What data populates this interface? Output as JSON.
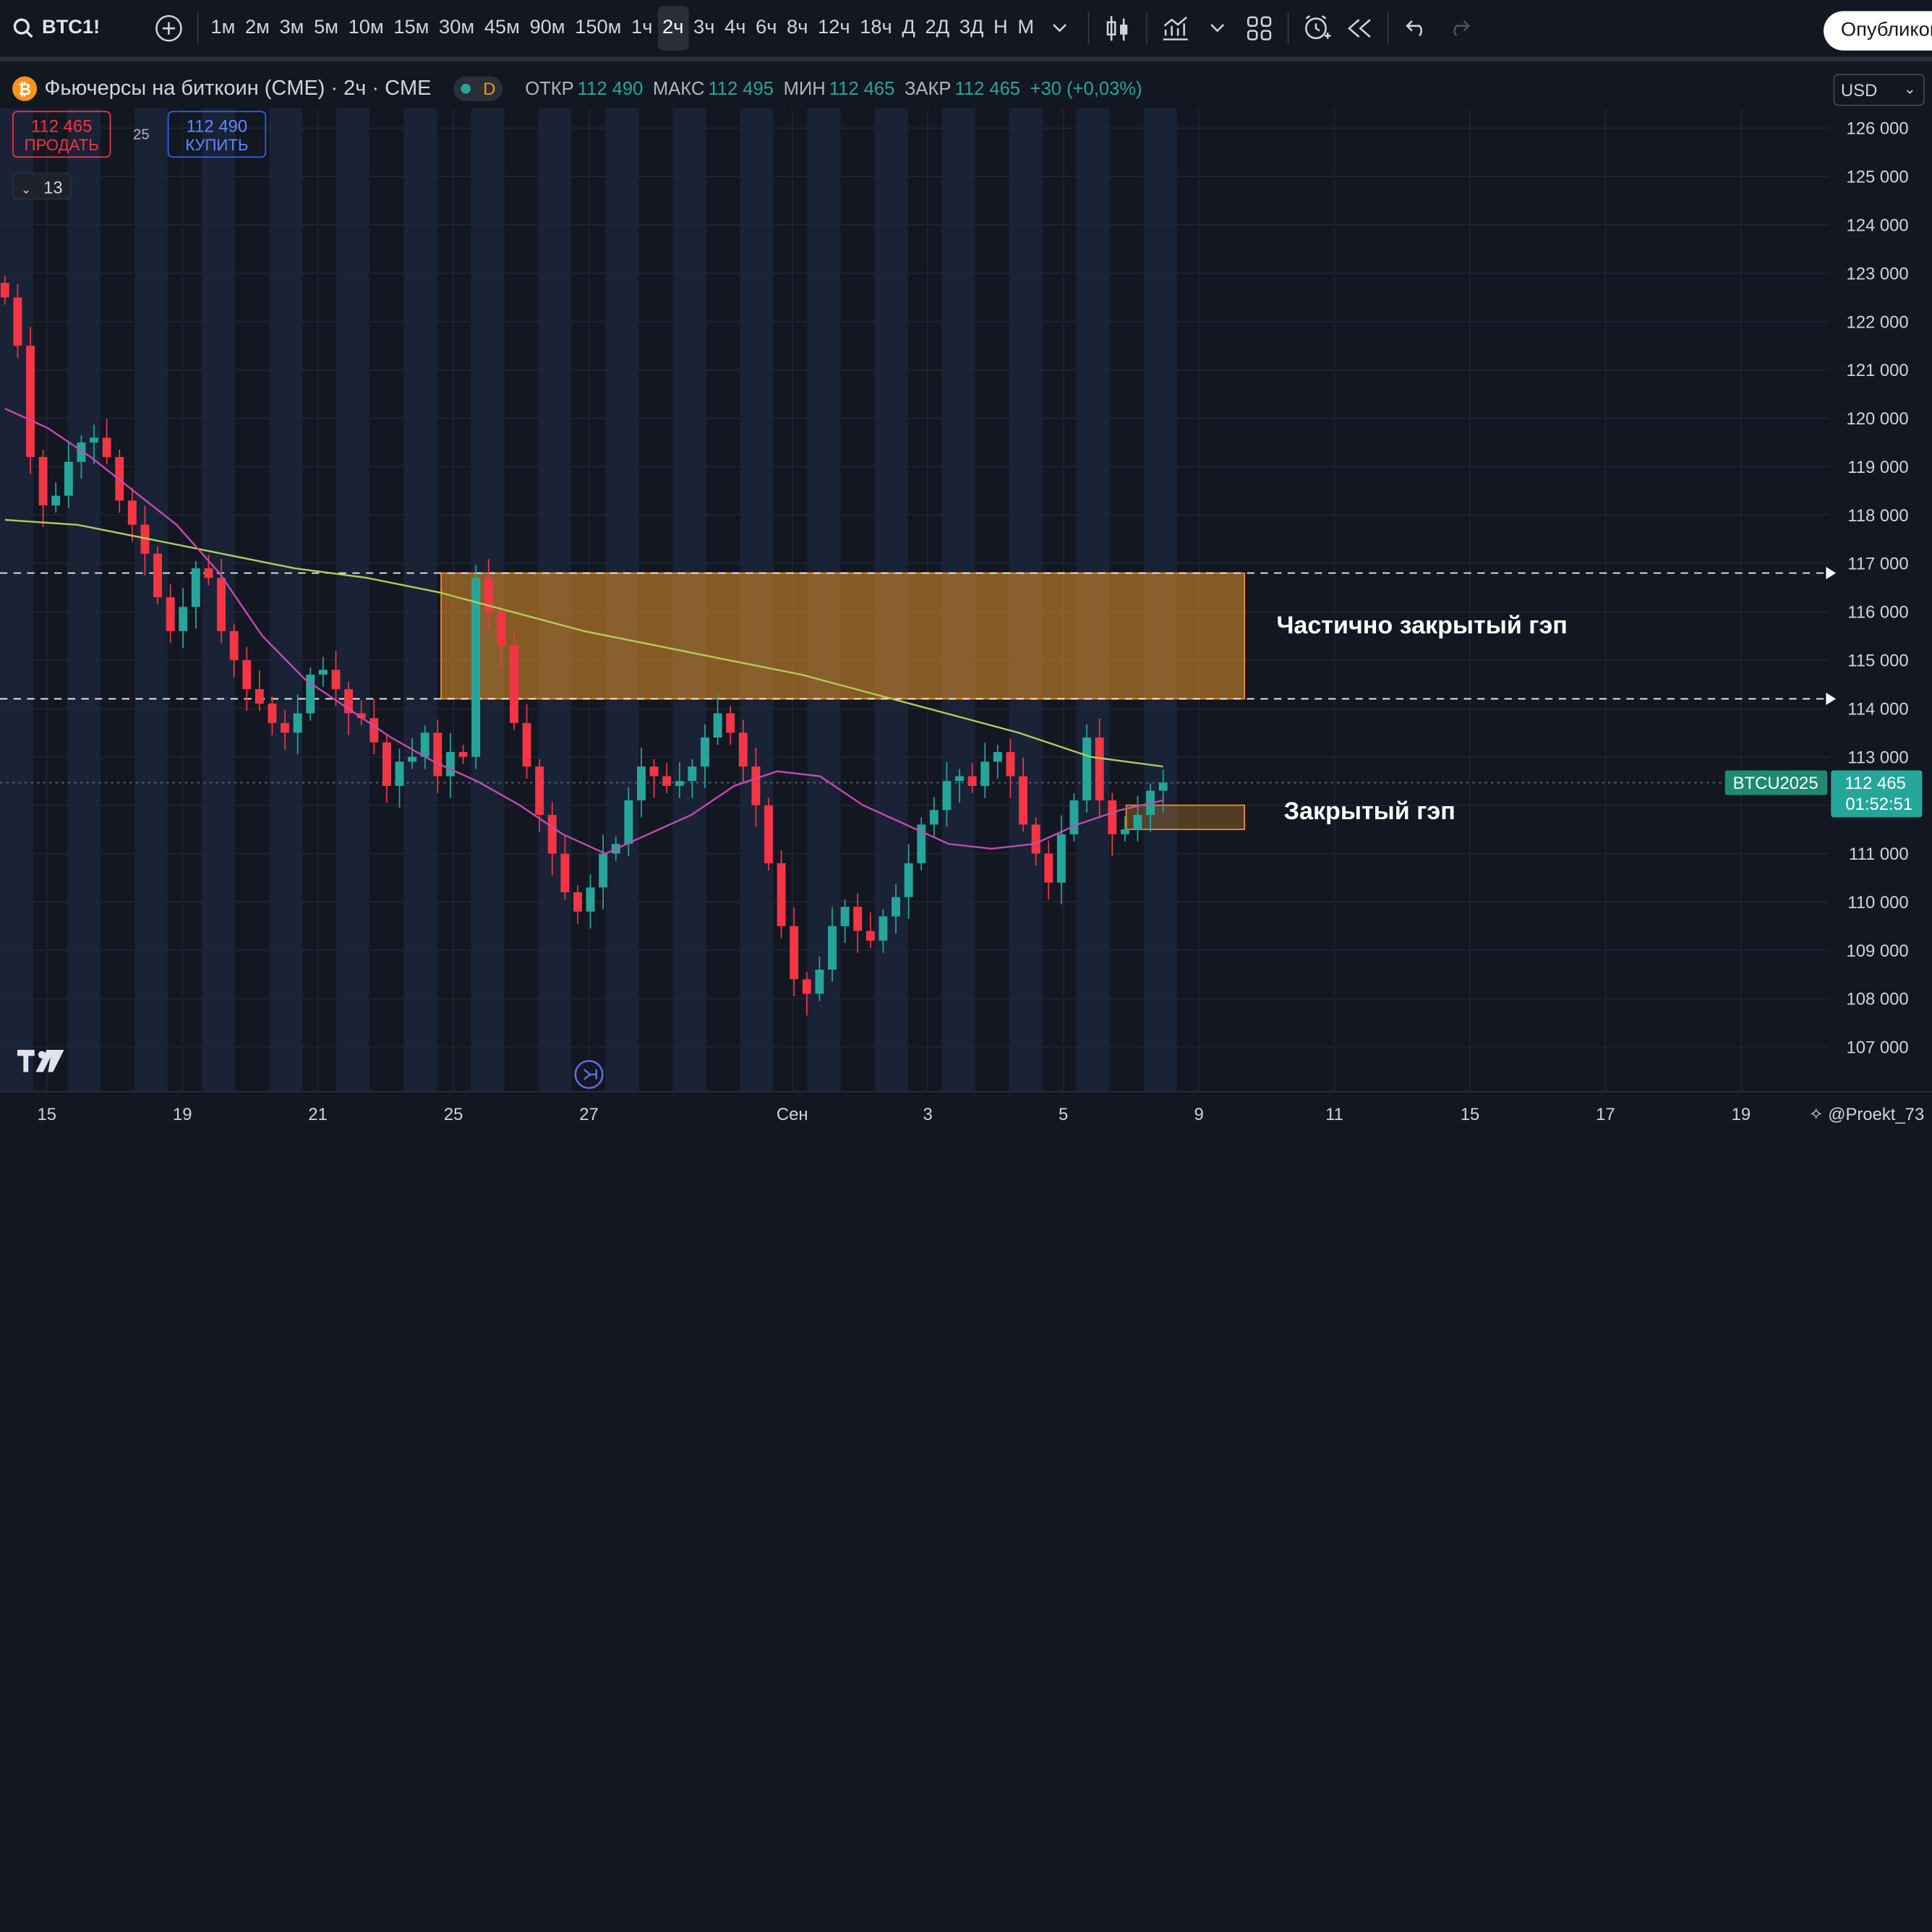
{
  "toolbar": {
    "symbol": "BTC1!",
    "intervals": [
      "1м",
      "2м",
      "3м",
      "5м",
      "10м",
      "15м",
      "30м",
      "45м",
      "90м",
      "150м",
      "1ч",
      "2ч",
      "3ч",
      "4ч",
      "6ч",
      "8ч",
      "12ч",
      "18ч",
      "Д",
      "2Д",
      "3Д",
      "Н",
      "М"
    ],
    "active_interval": "2ч",
    "publish_label": "Опубликовать",
    "icons": [
      "search-icon",
      "add-symbol-icon",
      "interval-menu-icon",
      "candles-icon",
      "indicators-icon",
      "templates-icon",
      "layout-icon",
      "alert-icon",
      "replay-icon",
      "undo-icon",
      "redo-icon"
    ]
  },
  "legend": {
    "title": "Фьючерсы на биткоин (CME) · 2ч · CME",
    "badge": "D",
    "open_label": "ОТКР",
    "open": "112 490",
    "high_label": "МАКС",
    "high": "112 495",
    "low_label": "МИН",
    "low": "112 465",
    "close_label": "ЗАКР",
    "close": "112 465",
    "change": "+30 (+0,03%)"
  },
  "trade": {
    "sell_price": "112 465",
    "sell_label": "ПРОДАТЬ",
    "spread": "25",
    "buy_price": "112 490",
    "buy_label": "КУПИТЬ",
    "indicators_count": "13"
  },
  "currency": "USD",
  "price_tag": {
    "symbol": "BTCU2025",
    "price": "112 465",
    "countdown": "01:52:51"
  },
  "annotations": {
    "gap_partial": "Частично закрытый гэп",
    "gap_closed": "Закрытый гэп"
  },
  "author": "@Proekt_73",
  "colors": {
    "up": "#26a69a",
    "down": "#f23645",
    "ma_long": "#b5cc5a",
    "ma_short": "#c34bb0",
    "gap": "#f7931a",
    "bg": "#131722"
  },
  "chart_data": {
    "type": "candlestick",
    "y_ticks": [
      126000,
      125000,
      124000,
      123000,
      122000,
      121000,
      120000,
      119000,
      118000,
      117000,
      116000,
      115000,
      114000,
      113000,
      112000,
      111000,
      110000,
      109000,
      108000,
      107000
    ],
    "x_ticks": [
      "15",
      "19",
      "21",
      "25",
      "27",
      "Сен",
      "3",
      "5",
      "9",
      "11",
      "15",
      "17",
      "19"
    ],
    "ylim": [
      106000,
      126500
    ],
    "gap_partial": {
      "low": 114200,
      "high": 116800
    },
    "gap_closed": {
      "low": 111500,
      "high": 112000
    },
    "last_price": 112465,
    "closes": [
      122500,
      121500,
      119200,
      118200,
      118400,
      119100,
      119500,
      119600,
      119200,
      118300,
      117800,
      117200,
      116300,
      115600,
      116100,
      116900,
      116700,
      115600,
      115000,
      114400,
      114100,
      113700,
      113500,
      113900,
      114700,
      114800,
      114400,
      113900,
      113800,
      113300,
      112400,
      112900,
      113000,
      113500,
      112600,
      113100,
      113000,
      116700,
      116000,
      115300,
      113700,
      112800,
      111800,
      111000,
      110200,
      109800,
      110300,
      111000,
      111200,
      112100,
      112800,
      112600,
      112400,
      112500,
      112800,
      113400,
      113900,
      113500,
      112800,
      112000,
      110800,
      109500,
      108400,
      108100,
      108600,
      109500,
      109900,
      109400,
      109200,
      109700,
      110100,
      110800,
      111600,
      111900,
      112500,
      112600,
      112400,
      112900,
      113100,
      112600,
      111600,
      111000,
      110400,
      111400,
      112100,
      113400,
      112100,
      111400,
      111500,
      111800,
      112300,
      112465
    ],
    "ma_long": [
      117900,
      117800,
      117500,
      117200,
      116900,
      116700,
      116400,
      116000,
      115600,
      115300,
      115000,
      114700,
      114300,
      113900,
      113500,
      113000,
      112800
    ],
    "ma_short": [
      120200,
      119800,
      119200,
      118500,
      117800,
      116800,
      115500,
      114600,
      114000,
      113400,
      112900,
      112500,
      112000,
      111400,
      111000,
      111400,
      111800,
      112400,
      112700,
      112600,
      112000,
      111600,
      111200,
      111100,
      111200,
      111600,
      111900,
      112100
    ]
  }
}
